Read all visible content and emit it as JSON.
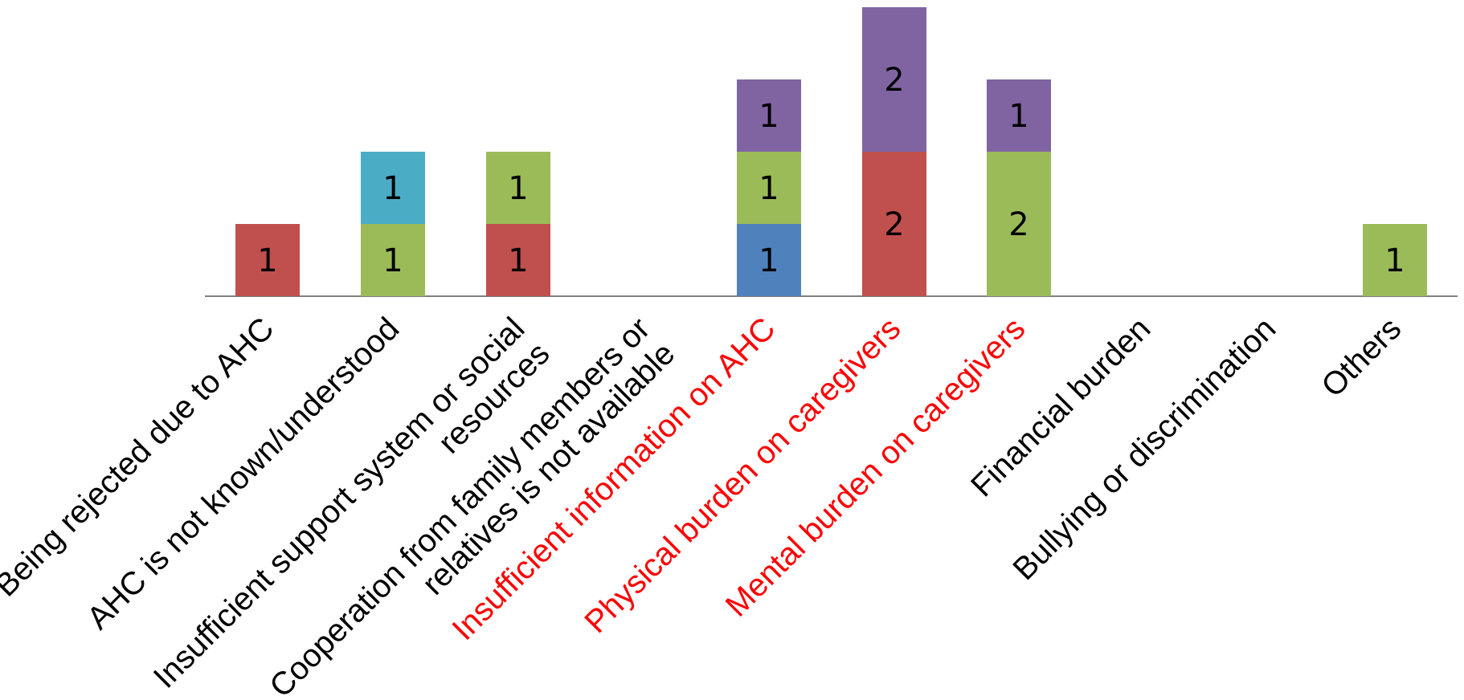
{
  "chart_data": {
    "type": "bar",
    "stacked": true,
    "categories": [
      [
        "Being rejected due to AHC"
      ],
      [
        "AHC is not known/understood"
      ],
      [
        "Insufficient support system or social",
        "resources"
      ],
      [
        "Cooperation from family members or",
        "relatives is not available"
      ],
      [
        "Insufficient information on AHC"
      ],
      [
        "Physical burden on caregivers"
      ],
      [
        "Mental burden on caregivers"
      ],
      [
        "Financial burden"
      ],
      [
        "Bullying or discrimination"
      ],
      [
        "Others"
      ]
    ],
    "highlighted_categories": [
      4,
      5,
      6
    ],
    "series": [
      {
        "color": "#4F81BD",
        "values": [
          0,
          0,
          0,
          0,
          1,
          0,
          0,
          0,
          0,
          0
        ]
      },
      {
        "color": "#C0504D",
        "values": [
          1,
          0,
          1,
          0,
          0,
          2,
          0,
          0,
          0,
          0
        ]
      },
      {
        "color": "#9BBB59",
        "values": [
          0,
          1,
          1,
          0,
          1,
          0,
          2,
          0,
          0,
          1
        ]
      },
      {
        "color": "#4BACC6",
        "values": [
          0,
          1,
          0,
          0,
          0,
          0,
          0,
          0,
          0,
          0
        ]
      },
      {
        "color": "#8064A2",
        "values": [
          0,
          0,
          0,
          0,
          1,
          2,
          1,
          0,
          0,
          0
        ]
      }
    ],
    "ylim": [
      0,
      4
    ],
    "grid": false,
    "legend": "none",
    "title": "",
    "xlabel": "",
    "ylabel": ""
  },
  "colors": {
    "highlight_text": "#FF0000",
    "normal_text": "#000000",
    "axis": "#808080"
  }
}
